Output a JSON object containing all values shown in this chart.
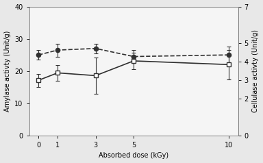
{
  "x": [
    0,
    1,
    3,
    5,
    10
  ],
  "amylase_y": [
    25.0,
    26.5,
    27.0,
    24.5,
    25.0
  ],
  "amylase_yerr": [
    1.5,
    2.0,
    1.5,
    2.0,
    2.5
  ],
  "cellulase_y": [
    3.0,
    3.4,
    3.25,
    4.05,
    3.85
  ],
  "cellulase_yerr": [
    0.35,
    0.44,
    0.97,
    0.44,
    0.79
  ],
  "left_ylim": [
    0,
    40
  ],
  "right_ylim": [
    0,
    7
  ],
  "left_yticks": [
    0,
    10,
    20,
    30,
    40
  ],
  "right_yticks": [
    0,
    2,
    3,
    4,
    5,
    7
  ],
  "right_ytick_labels": [
    "0",
    "2",
    "3",
    "4",
    "5",
    "7"
  ],
  "xlabel": "Absorbed dose (kGy)",
  "ylabel_left": "Amylase activty (Unit/g)",
  "ylabel_right": "Cellulase activty (Unit/g)",
  "background_color": "#e8e8e8",
  "plot_bg_color": "#f5f5f5",
  "font_size_labels": 7.0,
  "font_size_ticks": 7.0,
  "line_color": "#303030",
  "capsize": 2.5
}
